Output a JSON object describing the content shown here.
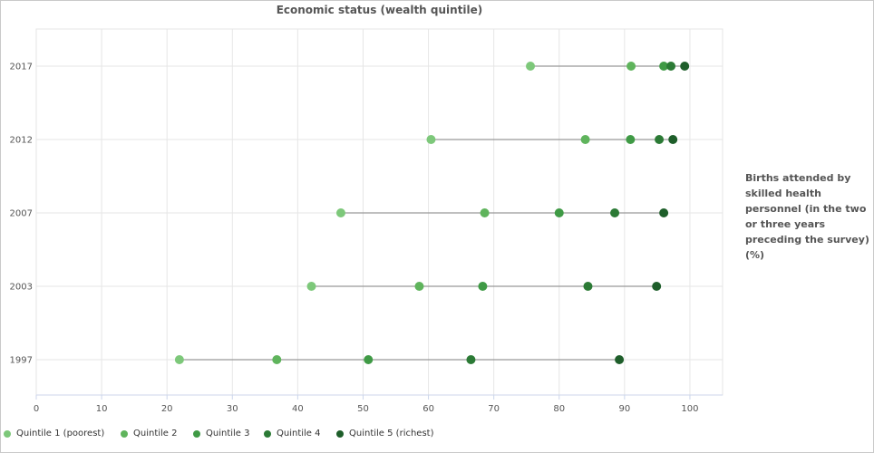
{
  "chart_data": {
    "type": "scatter",
    "title": "Economic status (wealth quintile)",
    "ylabel_note": "Births attended by skilled health personnel (in the two or three years preceding the survey) (%)",
    "xlim": [
      0,
      105
    ],
    "xticks": [
      0,
      10,
      20,
      30,
      40,
      50,
      60,
      70,
      80,
      90,
      100
    ],
    "categories": [
      "2017",
      "2012",
      "2007",
      "2003",
      "1997"
    ],
    "grid": true,
    "legend_position": "bottom-left",
    "series": [
      {
        "name": "Quintile 1 (poorest)",
        "color": "#7dc87a",
        "values": [
          75.6,
          60.4,
          46.6,
          42.1,
          21.9
        ]
      },
      {
        "name": "Quintile 2",
        "color": "#5fb45c",
        "values": [
          91.0,
          84.0,
          68.6,
          58.6,
          36.8
        ]
      },
      {
        "name": "Quintile 3",
        "color": "#3f9a45",
        "values": [
          96.0,
          90.9,
          80.0,
          68.3,
          50.8
        ]
      },
      {
        "name": "Quintile 4",
        "color": "#2b7a35",
        "values": [
          97.1,
          95.3,
          88.5,
          84.4,
          66.5
        ]
      },
      {
        "name": "Quintile 5 (richest)",
        "color": "#1e5e2a",
        "values": [
          99.2,
          97.4,
          96.0,
          94.9,
          89.2
        ]
      }
    ]
  }
}
